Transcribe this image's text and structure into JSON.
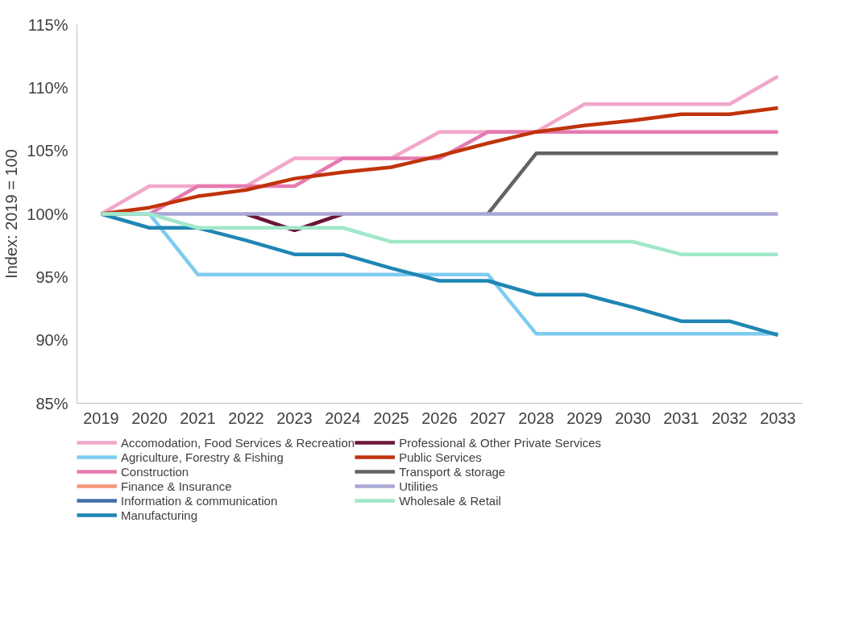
{
  "chart_data": {
    "type": "line",
    "ylabel": "Index: 2019 = 100",
    "categories": [
      "2019",
      "2020",
      "2021",
      "2022",
      "2023",
      "2024",
      "2025",
      "2026",
      "2027",
      "2028",
      "2029",
      "2030",
      "2031",
      "2032",
      "2033"
    ],
    "ylim": [
      85,
      115
    ],
    "yticks": [
      {
        "value": 85,
        "label": "85%"
      },
      {
        "value": 90,
        "label": "90%"
      },
      {
        "value": 95,
        "label": "95%"
      },
      {
        "value": 100,
        "label": "100%"
      },
      {
        "value": 105,
        "label": "105%"
      },
      {
        "value": 110,
        "label": "110%"
      },
      {
        "value": 115,
        "label": "115%"
      }
    ],
    "grid": false,
    "legend": "bottom",
    "series": [
      {
        "name": "Accomodation, Food Services & Recreation",
        "color": "#f2a7cb",
        "values": [
          100,
          102.2,
          102.2,
          102.2,
          104.4,
          104.4,
          104.4,
          106.5,
          106.5,
          106.5,
          108.7,
          108.7,
          108.7,
          108.7,
          110.9
        ]
      },
      {
        "name": "Agriculture, Forestry & Fishing",
        "color": "#7dcbf0",
        "values": [
          100,
          100,
          95.2,
          95.2,
          95.2,
          95.2,
          95.2,
          95.2,
          95.2,
          90.5,
          90.5,
          90.5,
          90.5,
          90.5,
          90.5
        ]
      },
      {
        "name": "Construction",
        "color": "#e57ab0",
        "values": [
          100,
          100,
          102.2,
          102.2,
          102.2,
          104.4,
          104.4,
          104.4,
          106.5,
          106.5,
          106.5,
          106.5,
          106.5,
          106.5,
          106.5
        ]
      },
      {
        "name": "Finance & Insurance",
        "color": "#f7967a",
        "values": [
          null,
          null,
          null,
          null,
          null,
          null,
          null,
          null,
          null,
          null,
          null,
          null,
          null,
          null,
          null
        ]
      },
      {
        "name": "Information & communication",
        "color": "#3f6fa8",
        "values": [
          null,
          null,
          null,
          null,
          null,
          null,
          null,
          null,
          null,
          null,
          null,
          null,
          null,
          null,
          null
        ]
      },
      {
        "name": "Manufacturing",
        "color": "#1f86b4",
        "values": [
          100,
          98.9,
          98.9,
          97.9,
          96.8,
          96.8,
          95.7,
          94.7,
          94.7,
          93.6,
          93.6,
          92.6,
          91.5,
          91.5,
          90.4
        ]
      },
      {
        "name": "Professional & Other Private Services",
        "color": "#6b1538",
        "values": [
          null,
          null,
          null,
          100,
          98.7,
          100,
          null,
          null,
          null,
          null,
          null,
          null,
          null,
          null,
          null
        ]
      },
      {
        "name": "Public Services",
        "color": "#c0330a",
        "values": [
          100,
          100.5,
          101.4,
          101.9,
          102.8,
          103.3,
          103.7,
          104.6,
          105.6,
          106.5,
          107.0,
          107.4,
          107.9,
          107.9,
          108.4
        ]
      },
      {
        "name": "Transport & storage",
        "color": "#636363",
        "values": [
          null,
          null,
          null,
          null,
          null,
          null,
          null,
          null,
          100,
          104.8,
          104.8,
          104.8,
          104.8,
          104.8,
          104.8
        ]
      },
      {
        "name": "Utilities",
        "color": "#a9a7d4",
        "values": [
          100,
          100,
          100,
          100,
          100,
          100,
          100,
          100,
          100,
          100,
          100,
          100,
          100,
          100,
          100
        ]
      },
      {
        "name": "Wholesale & Retail",
        "color": "#a0e8c9",
        "values": [
          100,
          100,
          98.9,
          98.9,
          98.9,
          98.9,
          97.8,
          97.8,
          97.8,
          97.8,
          97.8,
          97.8,
          96.8,
          96.8,
          96.8
        ]
      }
    ]
  }
}
